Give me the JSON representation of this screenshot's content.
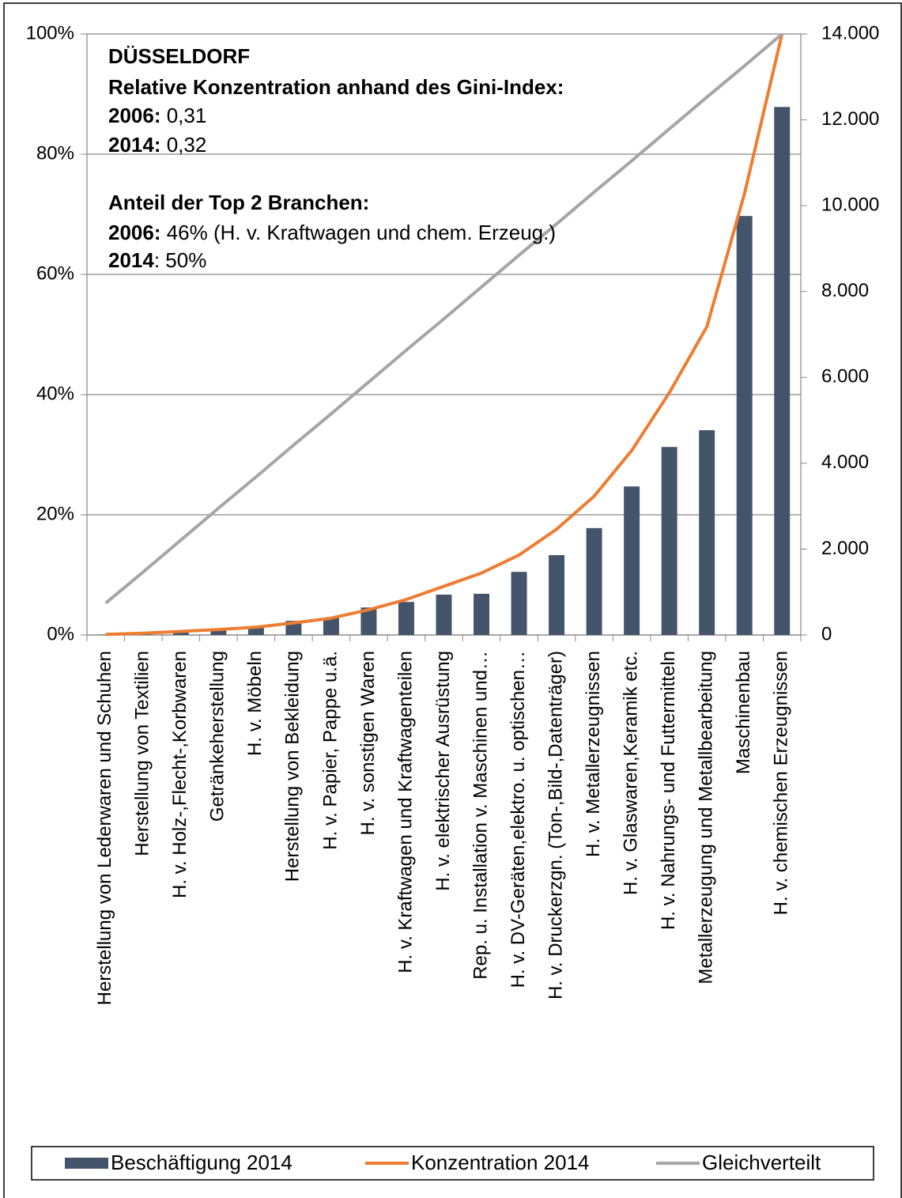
{
  "chart_data": {
    "type": "bar-line",
    "annotation": [
      [
        {
          "text": "DÜSSELDORF",
          "bold": true
        }
      ],
      [
        {
          "text": "Relative Konzentration anhand des Gini-Index:",
          "bold": true
        }
      ],
      [
        {
          "text": "2006:",
          "bold": true
        },
        {
          "text": " 0,31",
          "bold": false
        }
      ],
      [
        {
          "text": "2014:",
          "bold": true
        },
        {
          "text": " 0,32",
          "bold": false
        }
      ],
      [
        {
          "text": "Anteil der Top 2 Branchen:",
          "bold": true
        }
      ],
      [
        {
          "text": "2006:",
          "bold": true
        },
        {
          "text": " 46% (H. v. Kraftwagen und chem. Erzeug.)",
          "bold": false
        }
      ],
      [
        {
          "text": "2014",
          "bold": true
        },
        {
          "text": ": 50%",
          "bold": false
        }
      ]
    ],
    "categories": [
      "Herstellung von Lederwaren und Schuhen",
      "Herstellung von Textilien",
      "H. v. Holz-,Flecht-,Korbwaren",
      "Getränkeherstellung",
      "H. v.  Möbeln",
      "Herstellung von Bekleidung",
      "H. v. Papier, Pappe u.ä.",
      "H. v.  sonstigen Waren",
      "H. v.  Kraftwagen und Kraftwagenteilen",
      "H. v.  elektrischer Ausrüstung",
      "Rep. u. Installation v. Maschinen und…",
      "H. v. DV-Geräten,elektro. u. optischen…",
      "H. v. Druckerzgn. (Ton-,Bild-,Datenträger)",
      "H. v.  Metallerzeugnissen",
      "H. v. Glaswaren,Keramik etc.",
      "H. v. Nahrungs- und Futtermitteln",
      "Metallerzeugung und Metallbearbeitung",
      "Maschinenbau",
      "H. v. chemischen Erzeugnissen"
    ],
    "series": [
      {
        "name": "Beschäftigung 2014",
        "kind": "bar",
        "axis": "y2",
        "color": "#44546a",
        "values": [
          10,
          30,
          90,
          150,
          200,
          330,
          400,
          640,
          770,
          940,
          960,
          1470,
          1860,
          2490,
          3460,
          4380,
          4770,
          9760,
          12300
        ]
      },
      {
        "name": "Konzentration 2014",
        "kind": "line",
        "axis": "y",
        "color": "#ed7d31",
        "values": [
          0.1,
          0.3,
          0.6,
          0.9,
          1.3,
          2.0,
          2.8,
          4.2,
          5.9,
          8.1,
          10.3,
          13.3,
          17.6,
          23.1,
          30.7,
          40.3,
          51.3,
          73.4,
          100
        ]
      },
      {
        "name": "Gleichverteilt",
        "kind": "line",
        "axis": "y",
        "color": "#a5a5a5",
        "values": [
          5.3,
          10.5,
          15.8,
          21.1,
          26.3,
          31.6,
          36.8,
          42.1,
          47.4,
          52.6,
          57.9,
          63.2,
          68.4,
          73.7,
          78.9,
          84.2,
          89.5,
          94.7,
          100
        ]
      }
    ],
    "ylim": [
      0,
      100
    ],
    "yticks": [
      {
        "value": 0,
        "label": "0%"
      },
      {
        "value": 20,
        "label": "20%"
      },
      {
        "value": 40,
        "label": "40%"
      },
      {
        "value": 60,
        "label": "60%"
      },
      {
        "value": 80,
        "label": "80%"
      },
      {
        "value": 100,
        "label": "100%"
      }
    ],
    "y2lim": [
      0,
      14000
    ],
    "y2ticks": [
      0,
      {
        "value": 2000,
        "label": "2.000"
      },
      {
        "value": 4000,
        "label": "4.000"
      },
      {
        "value": 6000,
        "label": "6.000"
      },
      {
        "value": 8000,
        "label": "8.000"
      },
      {
        "value": 10000,
        "label": "10.000"
      },
      {
        "value": 12000,
        "label": "12.000"
      },
      {
        "value": 14000,
        "label": "14.000"
      }
    ],
    "grid": true,
    "legend": "bottom"
  }
}
